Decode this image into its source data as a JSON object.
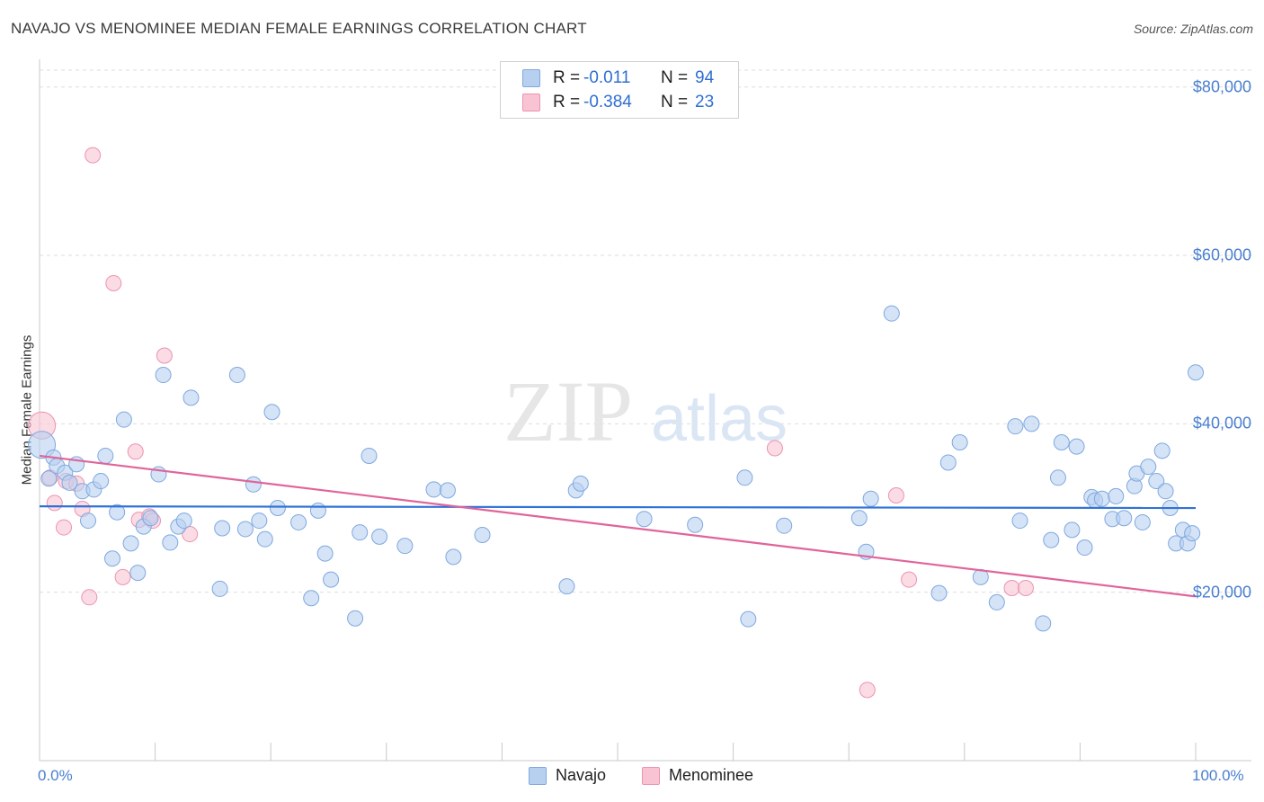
{
  "title": "NAVAJO VS MENOMINEE MEDIAN FEMALE EARNINGS CORRELATION CHART",
  "source": "Source: ZipAtlas.com",
  "watermark": {
    "zip": "ZIP",
    "atlas": "atlas"
  },
  "colors": {
    "navajo_fill": "#b8d0f0",
    "navajo_stroke": "#7fa8e0",
    "navajo_line": "#2f72d6",
    "menominee_fill": "#f8c4d4",
    "menominee_stroke": "#ec93b0",
    "menominee_line": "#e0649a",
    "tick_text": "#4a7fd0",
    "grid": "#dedede"
  },
  "legend": {
    "navajo": {
      "r_label": "R =",
      "r_value": "-0.011",
      "n_label": "N =",
      "n_value": "94"
    },
    "menominee": {
      "r_label": "R =",
      "r_value": "-0.384",
      "n_label": "N =",
      "n_value": "23"
    }
  },
  "bottom_legend": {
    "navajo": "Navajo",
    "menominee": "Menominee"
  },
  "chart_data": {
    "type": "scatter",
    "title": "NAVAJO VS MENOMINEE MEDIAN FEMALE EARNINGS CORRELATION CHART",
    "xlabel": "",
    "ylabel": "Median Female Earnings",
    "xlim": [
      0,
      100
    ],
    "ylim": [
      0,
      82000
    ],
    "x_tick_labels": {
      "left": "0.0%",
      "right": "100.0%"
    },
    "y_ticks": [
      {
        "value": 20000,
        "label": "$20,000"
      },
      {
        "value": 40000,
        "label": "$40,000"
      },
      {
        "value": 60000,
        "label": "$60,000"
      },
      {
        "value": 80000,
        "label": "$80,000"
      }
    ],
    "series": [
      {
        "name": "Navajo",
        "trend": {
          "x": [
            0,
            100
          ],
          "y": [
            30200,
            30000
          ]
        },
        "points": [
          [
            0.2,
            37500
          ],
          [
            0.8,
            33500
          ],
          [
            1.2,
            36000
          ],
          [
            1.5,
            35000
          ],
          [
            2.2,
            34200
          ],
          [
            2.6,
            33000
          ],
          [
            3.2,
            35200
          ],
          [
            3.7,
            32000
          ],
          [
            4.2,
            28500
          ],
          [
            4.7,
            32200
          ],
          [
            5.3,
            33200
          ],
          [
            5.7,
            36200
          ],
          [
            6.3,
            24000
          ],
          [
            6.7,
            29500
          ],
          [
            7.3,
            40500
          ],
          [
            7.9,
            25800
          ],
          [
            8.5,
            22300
          ],
          [
            9.0,
            27800
          ],
          [
            9.6,
            28800
          ],
          [
            10.3,
            34000
          ],
          [
            10.7,
            45800
          ],
          [
            11.3,
            25900
          ],
          [
            12.0,
            27800
          ],
          [
            12.5,
            28500
          ],
          [
            13.1,
            43100
          ],
          [
            15.8,
            27600
          ],
          [
            15.6,
            20400
          ],
          [
            17.1,
            45800
          ],
          [
            17.8,
            27500
          ],
          [
            18.5,
            32800
          ],
          [
            19.0,
            28500
          ],
          [
            19.5,
            26300
          ],
          [
            20.1,
            41400
          ],
          [
            20.6,
            30000
          ],
          [
            22.4,
            28300
          ],
          [
            23.5,
            19300
          ],
          [
            24.1,
            29700
          ],
          [
            24.7,
            24600
          ],
          [
            25.2,
            21500
          ],
          [
            27.3,
            16900
          ],
          [
            27.7,
            27100
          ],
          [
            28.5,
            36200
          ],
          [
            29.4,
            26600
          ],
          [
            31.6,
            25500
          ],
          [
            34.1,
            32200
          ],
          [
            35.3,
            32100
          ],
          [
            35.8,
            24200
          ],
          [
            38.3,
            26800
          ],
          [
            45.6,
            20700
          ],
          [
            46.4,
            32100
          ],
          [
            46.8,
            32900
          ],
          [
            52.3,
            28700
          ],
          [
            56.7,
            28000
          ],
          [
            61.3,
            16800
          ],
          [
            61.0,
            33600
          ],
          [
            64.4,
            27900
          ],
          [
            70.9,
            28800
          ],
          [
            71.5,
            24800
          ],
          [
            71.9,
            31100
          ],
          [
            73.7,
            53100
          ],
          [
            77.8,
            19900
          ],
          [
            78.6,
            35400
          ],
          [
            79.6,
            37800
          ],
          [
            81.4,
            21800
          ],
          [
            82.8,
            18800
          ],
          [
            84.4,
            39700
          ],
          [
            84.8,
            28500
          ],
          [
            85.8,
            40000
          ],
          [
            86.8,
            16300
          ],
          [
            87.5,
            26200
          ],
          [
            88.1,
            33600
          ],
          [
            88.4,
            37800
          ],
          [
            89.3,
            27400
          ],
          [
            89.7,
            37300
          ],
          [
            90.4,
            25300
          ],
          [
            91.0,
            31300
          ],
          [
            91.3,
            30900
          ],
          [
            91.9,
            31100
          ],
          [
            92.8,
            28700
          ],
          [
            93.1,
            31400
          ],
          [
            93.8,
            28800
          ],
          [
            94.7,
            32600
          ],
          [
            94.9,
            34100
          ],
          [
            95.4,
            28300
          ],
          [
            95.9,
            34900
          ],
          [
            96.6,
            33200
          ],
          [
            97.1,
            36800
          ],
          [
            97.4,
            32000
          ],
          [
            97.8,
            30000
          ],
          [
            98.3,
            25800
          ],
          [
            98.9,
            27400
          ],
          [
            99.3,
            25800
          ],
          [
            99.7,
            27000
          ],
          [
            100.0,
            46100
          ]
        ]
      },
      {
        "name": "Menominee",
        "trend": {
          "x": [
            0,
            100
          ],
          "y": [
            36200,
            19500
          ]
        },
        "points": [
          [
            0.2,
            39800
          ],
          [
            0.9,
            33600
          ],
          [
            1.3,
            30600
          ],
          [
            2.1,
            27700
          ],
          [
            2.3,
            33200
          ],
          [
            3.2,
            32900
          ],
          [
            3.7,
            29900
          ],
          [
            4.3,
            19400
          ],
          [
            4.6,
            71900
          ],
          [
            6.4,
            56700
          ],
          [
            7.2,
            21800
          ],
          [
            8.3,
            36700
          ],
          [
            8.6,
            28600
          ],
          [
            9.5,
            29000
          ],
          [
            9.8,
            28500
          ],
          [
            10.8,
            48100
          ],
          [
            13.0,
            26900
          ],
          [
            63.6,
            37100
          ],
          [
            71.6,
            8400
          ],
          [
            74.1,
            31500
          ],
          [
            75.2,
            21500
          ],
          [
            84.1,
            20500
          ],
          [
            85.3,
            20500
          ]
        ]
      }
    ]
  }
}
